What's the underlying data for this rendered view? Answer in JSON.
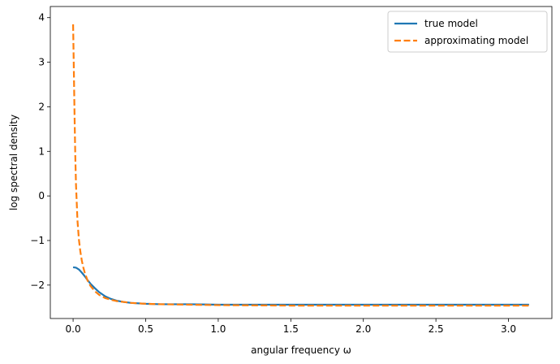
{
  "chart_data": {
    "type": "line",
    "xlabel": "angular frequency ω",
    "ylabel": "log spectral density",
    "xlim": [
      -0.157,
      3.299
    ],
    "ylim": [
      -2.75,
      4.25
    ],
    "xticks": [
      0.0,
      0.5,
      1.0,
      1.5,
      2.0,
      2.5,
      3.0
    ],
    "xtick_labels": [
      "0.0",
      "0.5",
      "1.0",
      "1.5",
      "2.0",
      "2.5",
      "3.0"
    ],
    "yticks": [
      -2,
      -1,
      0,
      1,
      2,
      3,
      4
    ],
    "ytick_labels": [
      "−2",
      "−1",
      "0",
      "1",
      "2",
      "3",
      "4"
    ],
    "grid": false,
    "legend_position": "top-right",
    "series": [
      {
        "name": "true model",
        "color": "#1f77b4",
        "style": "solid",
        "x": [
          0.0,
          0.02,
          0.04,
          0.06,
          0.08,
          0.1,
          0.12,
          0.15,
          0.18,
          0.22,
          0.26,
          0.3,
          0.35,
          0.4,
          0.5,
          0.6,
          0.8,
          1.0,
          1.5,
          2.0,
          2.5,
          3.1416
        ],
        "y": [
          -1.6,
          -1.61,
          -1.65,
          -1.72,
          -1.8,
          -1.89,
          -1.97,
          -2.07,
          -2.16,
          -2.25,
          -2.31,
          -2.35,
          -2.38,
          -2.4,
          -2.42,
          -2.43,
          -2.43,
          -2.44,
          -2.44,
          -2.44,
          -2.44,
          -2.44
        ]
      },
      {
        "name": "approximating model",
        "color": "#ff7f0e",
        "style": "dashed",
        "x": [
          0.0,
          0.005,
          0.01,
          0.015,
          0.02,
          0.03,
          0.04,
          0.05,
          0.06,
          0.07,
          0.08,
          0.1,
          0.12,
          0.15,
          0.18,
          0.22,
          0.26,
          0.3,
          0.35,
          0.4,
          0.5,
          0.6,
          0.8,
          1.0,
          1.5,
          2.0,
          2.5,
          3.1416
        ],
        "y": [
          3.85,
          2.85,
          1.8,
          0.9,
          0.25,
          -0.55,
          -0.98,
          -1.25,
          -1.45,
          -1.6,
          -1.72,
          -1.9,
          -2.02,
          -2.14,
          -2.22,
          -2.29,
          -2.33,
          -2.36,
          -2.38,
          -2.4,
          -2.42,
          -2.43,
          -2.44,
          -2.45,
          -2.46,
          -2.46,
          -2.46,
          -2.46
        ]
      }
    ]
  }
}
